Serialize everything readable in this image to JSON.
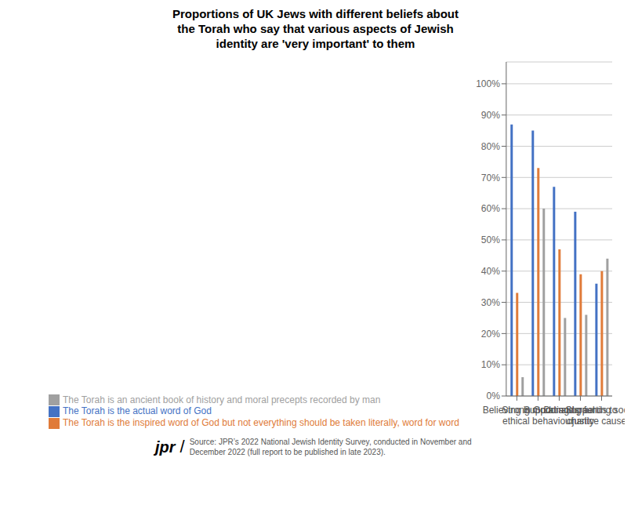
{
  "chart_data": {
    "type": "bar",
    "title": "Proportions of UK Jews with different beliefs about\nthe Torah who say that various aspects of Jewish\nidentity are 'very important' to them",
    "categories": [
      "Believing in God",
      "Strong moral and\nethical behaviour",
      "Supporting Israel",
      "Donating funds to\ncharity",
      "Supporting social\njustice causes"
    ],
    "series": [
      {
        "name": "The Torah is the actual word of God",
        "color": "#4472C4",
        "values": [
          87,
          85,
          67,
          59,
          36
        ]
      },
      {
        "name": "The Torah is the inspired word of God but not everything should be taken literally, word for word",
        "color": "#E07B39",
        "values": [
          33,
          73,
          47,
          39,
          40
        ]
      },
      {
        "name": "The Torah is an ancient book of history and moral precepts recorded by man",
        "color": "#A0A0A0",
        "values": [
          6,
          60,
          25,
          26,
          44
        ]
      }
    ],
    "ylim": [
      0,
      107
    ],
    "yticks": [
      {
        "value": 0,
        "label": "0%"
      },
      {
        "value": 10,
        "label": "10%"
      },
      {
        "value": 20,
        "label": "20%"
      },
      {
        "value": 30,
        "label": "30%"
      },
      {
        "value": 40,
        "label": "40%"
      },
      {
        "value": 50,
        "label": "50%"
      },
      {
        "value": 60,
        "label": "60%"
      },
      {
        "value": 70,
        "label": "70%"
      },
      {
        "value": 80,
        "label": "80%"
      },
      {
        "value": 90,
        "label": "90%"
      },
      {
        "value": 100,
        "label": "100%"
      }
    ],
    "grid": true,
    "legend": "bottom",
    "annotations": [
      "jpr",
      "/",
      "Source: JPR’s 2022 National Jewish Identity Survey, conducted in November and\nDecember 2022 (full report to be published in late 2023)."
    ]
  }
}
